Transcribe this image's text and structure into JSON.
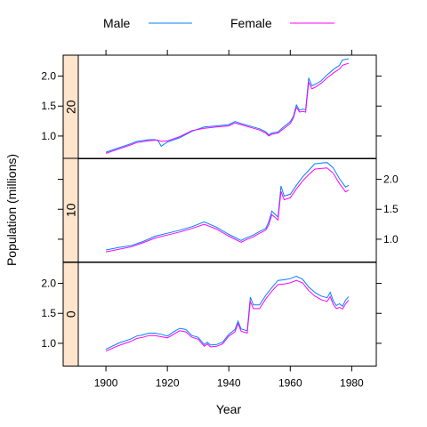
{
  "chart_data": {
    "type": "line",
    "xlabel": "Year",
    "ylabel": "Population (millions)",
    "xlim": [
      1891,
      1988
    ],
    "x_ticks": [
      1900,
      1920,
      1940,
      1960,
      1980
    ],
    "y_ticks": [
      1.0,
      1.5,
      2.0
    ],
    "legend": {
      "position": "top",
      "entries": [
        {
          "name": "Male",
          "color": "#0080ff"
        },
        {
          "name": "Female",
          "color": "#ff00ff"
        }
      ]
    },
    "strip_color": "#ffe5cc",
    "panels": [
      {
        "strip_label": "20",
        "ylim": [
          0.62,
          2.35
        ],
        "tick_side": "left",
        "series": [
          {
            "name": "Male",
            "color": "#0080ff",
            "x": [
              1900,
              1904,
              1908,
              1910,
              1914,
              1916,
              1917,
              1918,
              1920,
              1924,
              1928,
              1932,
              1936,
              1940,
              1942,
              1944,
              1948,
              1950,
              1952,
              1953,
              1954,
              1956,
              1958,
              1960,
              1961,
              1962,
              1963,
              1964,
              1965,
              1966,
              1967,
              1968,
              1970,
              1972,
              1974,
              1976,
              1977,
              1978,
              1979
            ],
            "y": [
              0.73,
              0.8,
              0.87,
              0.91,
              0.94,
              0.94,
              0.92,
              0.83,
              0.9,
              0.97,
              1.08,
              1.15,
              1.17,
              1.19,
              1.24,
              1.21,
              1.15,
              1.12,
              1.07,
              1.02,
              1.05,
              1.07,
              1.16,
              1.24,
              1.33,
              1.52,
              1.43,
              1.45,
              1.44,
              1.97,
              1.84,
              1.86,
              1.92,
              2.02,
              2.11,
              2.18,
              2.27,
              2.28,
              2.29
            ]
          },
          {
            "name": "Female",
            "color": "#ff00ff",
            "x": [
              1900,
              1904,
              1908,
              1910,
              1914,
              1916,
              1917,
              1918,
              1920,
              1924,
              1928,
              1932,
              1936,
              1940,
              1942,
              1944,
              1948,
              1950,
              1952,
              1953,
              1954,
              1956,
              1958,
              1960,
              1961,
              1962,
              1963,
              1964,
              1965,
              1966,
              1967,
              1968,
              1970,
              1972,
              1974,
              1976,
              1977,
              1978,
              1979
            ],
            "y": [
              0.71,
              0.78,
              0.85,
              0.89,
              0.92,
              0.93,
              0.93,
              0.91,
              0.92,
              0.99,
              1.09,
              1.13,
              1.15,
              1.17,
              1.22,
              1.19,
              1.13,
              1.1,
              1.05,
              1.0,
              1.03,
              1.05,
              1.13,
              1.21,
              1.3,
              1.48,
              1.4,
              1.41,
              1.4,
              1.9,
              1.79,
              1.81,
              1.88,
              1.97,
              2.05,
              2.12,
              2.18,
              2.2,
              2.21
            ]
          }
        ]
      },
      {
        "strip_label": "10",
        "ylim": [
          0.62,
          2.35
        ],
        "tick_side": "right",
        "series": [
          {
            "name": "Male",
            "color": "#0080ff",
            "x": [
              1900,
              1904,
              1908,
              1912,
              1916,
              1920,
              1924,
              1928,
              1932,
              1936,
              1940,
              1944,
              1946,
              1948,
              1950,
              1952,
              1953,
              1954,
              1956,
              1957,
              1958,
              1960,
              1962,
              1964,
              1966,
              1968,
              1970,
              1972,
              1974,
              1976,
              1978,
              1979
            ],
            "y": [
              0.82,
              0.86,
              0.89,
              0.96,
              1.05,
              1.1,
              1.15,
              1.21,
              1.29,
              1.2,
              1.08,
              0.98,
              1.03,
              1.07,
              1.13,
              1.18,
              1.29,
              1.47,
              1.37,
              1.89,
              1.72,
              1.75,
              1.9,
              2.04,
              2.15,
              2.26,
              2.27,
              2.28,
              2.19,
              2.01,
              1.87,
              1.9
            ]
          },
          {
            "name": "Female",
            "color": "#ff00ff",
            "x": [
              1900,
              1904,
              1908,
              1912,
              1916,
              1920,
              1924,
              1928,
              1932,
              1936,
              1940,
              1944,
              1946,
              1948,
              1950,
              1952,
              1953,
              1954,
              1956,
              1957,
              1958,
              1960,
              1962,
              1964,
              1966,
              1968,
              1970,
              1972,
              1974,
              1976,
              1978,
              1979
            ],
            "y": [
              0.79,
              0.83,
              0.87,
              0.94,
              1.02,
              1.07,
              1.12,
              1.18,
              1.25,
              1.17,
              1.05,
              0.95,
              1.0,
              1.04,
              1.1,
              1.15,
              1.24,
              1.41,
              1.32,
              1.8,
              1.66,
              1.69,
              1.84,
              1.97,
              2.08,
              2.17,
              2.18,
              2.19,
              2.1,
              1.93,
              1.79,
              1.82
            ]
          }
        ]
      },
      {
        "strip_label": "0",
        "ylim": [
          0.62,
          2.35
        ],
        "tick_side": "left",
        "series": [
          {
            "name": "Male",
            "color": "#0080ff",
            "x": [
              1900,
              1904,
              1908,
              1910,
              1912,
              1914,
              1916,
              1918,
              1920,
              1922,
              1924,
              1926,
              1928,
              1930,
              1932,
              1933,
              1934,
              1936,
              1938,
              1940,
              1942,
              1943,
              1944,
              1946,
              1947,
              1948,
              1950,
              1952,
              1954,
              1956,
              1958,
              1960,
              1962,
              1964,
              1966,
              1968,
              1970,
              1972,
              1973,
              1974,
              1975,
              1976,
              1977,
              1978,
              1979
            ],
            "y": [
              0.9,
              1.0,
              1.07,
              1.12,
              1.14,
              1.17,
              1.17,
              1.15,
              1.12,
              1.19,
              1.25,
              1.23,
              1.13,
              1.1,
              0.98,
              1.02,
              0.97,
              0.98,
              1.02,
              1.15,
              1.23,
              1.37,
              1.24,
              1.21,
              1.77,
              1.64,
              1.64,
              1.8,
              1.93,
              2.05,
              2.06,
              2.08,
              2.12,
              2.07,
              1.94,
              1.85,
              1.79,
              1.76,
              1.85,
              1.71,
              1.63,
              1.66,
              1.62,
              1.72,
              1.78
            ]
          },
          {
            "name": "Female",
            "color": "#ff00ff",
            "x": [
              1900,
              1904,
              1908,
              1910,
              1912,
              1914,
              1916,
              1918,
              1920,
              1922,
              1924,
              1926,
              1928,
              1930,
              1932,
              1933,
              1934,
              1936,
              1938,
              1940,
              1942,
              1943,
              1944,
              1946,
              1947,
              1948,
              1950,
              1952,
              1954,
              1956,
              1958,
              1960,
              1962,
              1964,
              1966,
              1968,
              1970,
              1972,
              1973,
              1974,
              1975,
              1976,
              1977,
              1978,
              1979
            ],
            "y": [
              0.87,
              0.96,
              1.03,
              1.08,
              1.1,
              1.13,
              1.13,
              1.11,
              1.09,
              1.15,
              1.21,
              1.19,
              1.1,
              1.07,
              0.95,
              0.99,
              0.94,
              0.95,
              0.99,
              1.12,
              1.19,
              1.33,
              1.2,
              1.17,
              1.7,
              1.58,
              1.58,
              1.74,
              1.87,
              1.98,
              1.99,
              2.01,
              2.05,
              2.01,
              1.88,
              1.79,
              1.73,
              1.7,
              1.78,
              1.65,
              1.58,
              1.6,
              1.57,
              1.66,
              1.72
            ]
          }
        ]
      }
    ]
  }
}
